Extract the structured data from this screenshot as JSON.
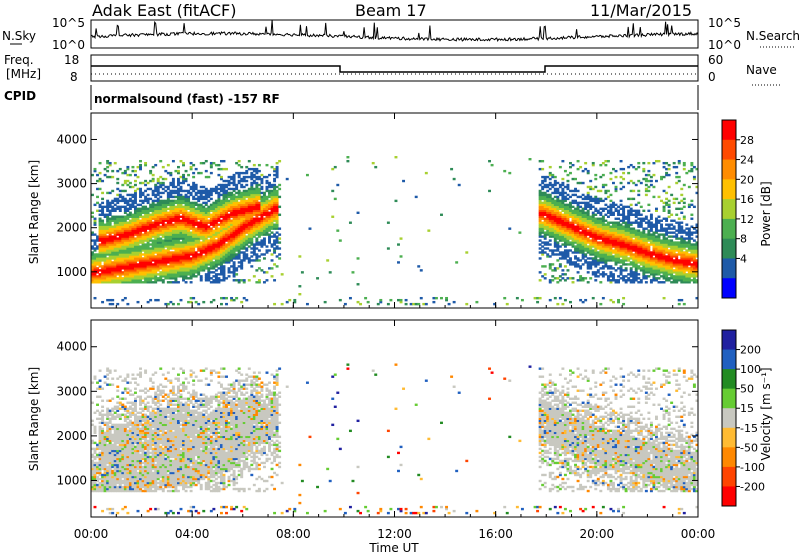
{
  "header": {
    "station": "Adak East (fitACF)",
    "beam": "Beam 17",
    "date": "11/Mar/2015"
  },
  "top_panels": {
    "noise": {
      "left_label": "N.Sky",
      "right_label": "N.Search",
      "left_ticks": [
        "10^5",
        "10^0"
      ],
      "right_ticks": [
        "10^5",
        "10^0"
      ]
    },
    "freq": {
      "left_label_1": "Freq.",
      "left_label_2": "[MHz]",
      "right_label": "Nave",
      "left_ticks": [
        "18",
        "8"
      ],
      "right_ticks": [
        "60",
        "0"
      ]
    },
    "cpid": {
      "label": "CPID",
      "text": "normalsound (fast) -157 RF"
    }
  },
  "colorbars": {
    "power": {
      "title": "Power [dB]",
      "ticks": [
        "28",
        "24",
        "20",
        "16",
        "12",
        "8",
        "4"
      ],
      "colors": [
        "#ff0000",
        "#ff4a00",
        "#ff8c00",
        "#ffc000",
        "#a8d030",
        "#4caf50",
        "#2e8b57",
        "#1e5aa8",
        "#0000ff"
      ]
    },
    "velocity": {
      "title": "Velocity [m s⁻¹]",
      "ticks": [
        "200",
        "100",
        "50",
        "15",
        "-15",
        "-50",
        "-100",
        "-200"
      ],
      "colors": [
        "#2020a0",
        "#2060c0",
        "#228b22",
        "#66cc33",
        "#c8c8c0",
        "#ffbb33",
        "#ff8800",
        "#ff4400",
        "#ff0000"
      ]
    }
  },
  "chart_data": [
    {
      "type": "heatmap",
      "name": "power",
      "xlabel": "Time UT",
      "ylabel": "Slant Range [km]",
      "x_ticks": [
        "00:00",
        "04:00",
        "08:00",
        "12:00",
        "16:00",
        "20:00",
        "00:00"
      ],
      "y_ticks": [
        "1000",
        "2000",
        "3000",
        "4000"
      ],
      "xlim": [
        0,
        24
      ],
      "ylim": [
        180,
        4600
      ],
      "colorbar_range": [
        0,
        32
      ],
      "bands": [
        {
          "t": [
            0.0,
            1.0,
            2.0,
            3.0,
            4.0,
            5.0,
            6.0,
            7.2
          ],
          "r": [
            950,
            1050,
            1150,
            1250,
            1350,
            1600,
            2000,
            2400
          ],
          "value": 28
        },
        {
          "t": [
            0.5,
            1.5,
            2.5,
            3.5,
            4.5,
            5.5,
            6.5
          ],
          "r": [
            1700,
            1850,
            2050,
            2200,
            2000,
            2300,
            2450
          ],
          "value": 25
        },
        {
          "t": [
            17.8,
            19.0,
            20.0,
            21.0,
            22.0,
            23.0,
            24.0
          ],
          "r": [
            2300,
            2000,
            1750,
            1600,
            1400,
            1250,
            1150
          ],
          "value": 28
        }
      ]
    },
    {
      "type": "heatmap",
      "name": "velocity",
      "xlabel": "Time UT",
      "ylabel": "Slant Range [km]",
      "x_ticks": [
        "00:00",
        "04:00",
        "08:00",
        "12:00",
        "16:00",
        "20:00",
        "00:00"
      ],
      "y_ticks": [
        "1000",
        "2000",
        "3000",
        "4000"
      ],
      "xlim": [
        0,
        24
      ],
      "ylim": [
        180,
        4600
      ],
      "colorbar_range": [
        -250,
        250
      ],
      "dominant_value": 0
    }
  ]
}
